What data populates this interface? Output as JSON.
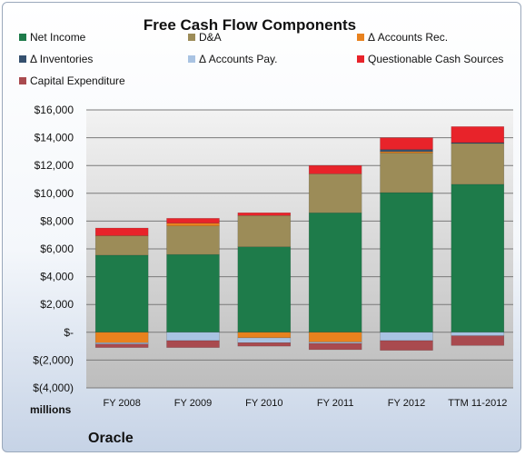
{
  "chart_data": {
    "type": "bar",
    "stacked": true,
    "title": "Free Cash Flow Components",
    "categories": [
      "FY 2008",
      "FY 2009",
      "FY 2010",
      "FY 2011",
      "FY 2012",
      "TTM 11-2012"
    ],
    "series": [
      {
        "name": "Net Income",
        "color": "#1e7b4a",
        "values": [
          5550,
          5600,
          6150,
          8600,
          10050,
          10650
        ]
      },
      {
        "name": "D&A",
        "color": "#9c8c58",
        "values": [
          1400,
          2050,
          2250,
          2800,
          2850,
          2950
        ]
      },
      {
        "name": "Δ Accounts Rec.",
        "color": "#e8821e",
        "values": [
          -750,
          200,
          -400,
          -700,
          100,
          0
        ]
      },
      {
        "name": "Δ Inventories",
        "color": "#34506e",
        "values": [
          0,
          0,
          0,
          0,
          150,
          50
        ]
      },
      {
        "name": "Δ Accounts Pay.",
        "color": "#a9c3e2",
        "values": [
          -100,
          -600,
          -350,
          -100,
          -600,
          -250
        ]
      },
      {
        "name": "Questionable Cash Sources",
        "color": "#e8232a",
        "values": [
          550,
          350,
          200,
          600,
          850,
          1150
        ]
      },
      {
        "name": "Capital Expenditure",
        "color": "#a94a4f",
        "values": [
          -250,
          -500,
          -250,
          -450,
          -700,
          -700
        ]
      }
    ],
    "ylim": [
      -4000,
      16000
    ],
    "yticks": [
      -4000,
      -2000,
      0,
      2000,
      4000,
      6000,
      8000,
      10000,
      12000,
      14000,
      16000
    ],
    "ytick_labels": [
      "$(4,000)",
      "$(2,000)",
      "$-",
      "$2,000",
      "$4,000",
      "$6,000",
      "$8,000",
      "$10,000",
      "$12,000",
      "$14,000",
      "$16,000"
    ],
    "ylabel": "millions",
    "legend_position": "top",
    "grid": true
  },
  "company": "Oracle"
}
